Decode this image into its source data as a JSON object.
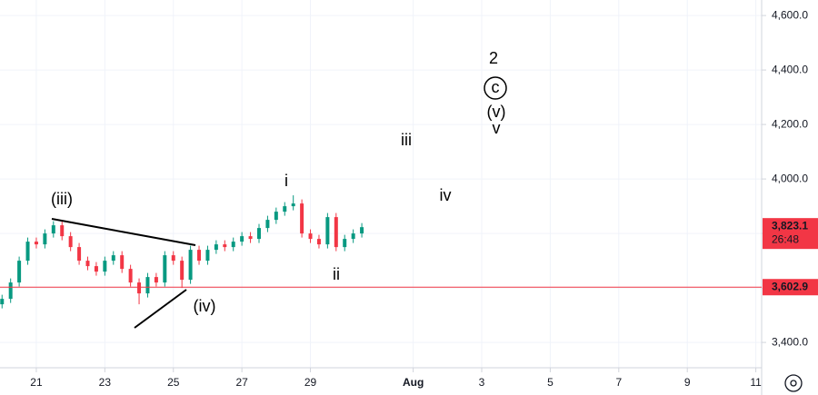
{
  "chart_data": {
    "type": "candlestick",
    "x": [
      20,
      20.25,
      20.5,
      20.75,
      21,
      21.25,
      21.5,
      21.75,
      22,
      22.25,
      22.5,
      22.75,
      23,
      23.25,
      23.5,
      23.75,
      24,
      24.25,
      24.5,
      24.75,
      25,
      25.25,
      25.5,
      25.75,
      26,
      26.25,
      26.5,
      26.75,
      27,
      27.25,
      27.5,
      27.75,
      28,
      28.25,
      28.5,
      28.75,
      29,
      29.25,
      29.5,
      29.75,
      30,
      30.25,
      30.5
    ],
    "open": [
      3540,
      3560,
      3620,
      3700,
      3770,
      3760,
      3800,
      3830,
      3790,
      3750,
      3700,
      3680,
      3660,
      3700,
      3720,
      3670,
      3620,
      3580,
      3640,
      3620,
      3720,
      3700,
      3630,
      3740,
      3700,
      3740,
      3760,
      3750,
      3770,
      3790,
      3780,
      3820,
      3850,
      3880,
      3900,
      3910,
      3800,
      3780,
      3760,
      3860,
      3750,
      3780,
      3800
    ],
    "high": [
      3575,
      3635,
      3715,
      3785,
      3785,
      3815,
      3845,
      3845,
      3805,
      3765,
      3715,
      3695,
      3715,
      3735,
      3735,
      3685,
      3635,
      3655,
      3655,
      3735,
      3735,
      3715,
      3755,
      3755,
      3755,
      3775,
      3775,
      3785,
      3805,
      3805,
      3835,
      3865,
      3895,
      3915,
      3940,
      3925,
      3815,
      3795,
      3875,
      3875,
      3795,
      3815,
      3838.1
    ],
    "low": [
      3525,
      3545,
      3605,
      3685,
      3745,
      3745,
      3785,
      3775,
      3735,
      3685,
      3665,
      3645,
      3645,
      3685,
      3655,
      3605,
      3540,
      3565,
      3605,
      3605,
      3685,
      3600,
      3615,
      3685,
      3685,
      3725,
      3735,
      3735,
      3755,
      3765,
      3765,
      3805,
      3835,
      3865,
      3885,
      3785,
      3765,
      3745,
      3745,
      3735,
      3735,
      3765,
      3785
    ],
    "close": [
      3560,
      3620,
      3700,
      3770,
      3760,
      3800,
      3830,
      3790,
      3750,
      3700,
      3680,
      3660,
      3700,
      3720,
      3670,
      3620,
      3580,
      3640,
      3620,
      3720,
      3700,
      3630,
      3740,
      3700,
      3740,
      3760,
      3750,
      3770,
      3790,
      3780,
      3820,
      3850,
      3880,
      3900,
      3910,
      3800,
      3780,
      3760,
      3860,
      3750,
      3780,
      3800,
      3823.1
    ],
    "up_color": "#089981",
    "down_color": "#f23645",
    "xlim": [
      19.94,
      42.17
    ],
    "xticks": [
      21,
      23,
      25,
      27,
      29,
      {
        "value": 32,
        "label": "Aug"
      },
      {
        "value": 34,
        "label": "3"
      },
      {
        "value": 36,
        "label": "5"
      },
      {
        "value": 38,
        "label": "7"
      },
      {
        "value": 40,
        "label": "9"
      },
      {
        "value": 42,
        "label": "11"
      }
    ],
    "ylim": [
      3307,
      4657
    ],
    "yticks": [
      {
        "value": 3400,
        "label": "3,400.0"
      },
      {
        "value": 3600,
        "label": "3,600.0"
      },
      {
        "value": 3800,
        "label": "3,800.0"
      },
      {
        "value": 4000,
        "label": "4,000.0"
      },
      {
        "value": 4200,
        "label": "4,200.0"
      },
      {
        "value": 4400,
        "label": "4,400.0"
      },
      {
        "value": 4600,
        "label": "4,600.0"
      }
    ],
    "grid": true,
    "last_price": {
      "value": 3823.1,
      "label": "3,823.1"
    },
    "countdown": "26:48",
    "level_line": {
      "value": 3602.9,
      "label": "3,602.9",
      "color": "#f23645"
    },
    "annotations": [
      "(iii)",
      "i",
      "ii",
      "(iv)",
      "iii",
      "iv",
      "2",
      "c",
      "(v)",
      "v"
    ]
  }
}
